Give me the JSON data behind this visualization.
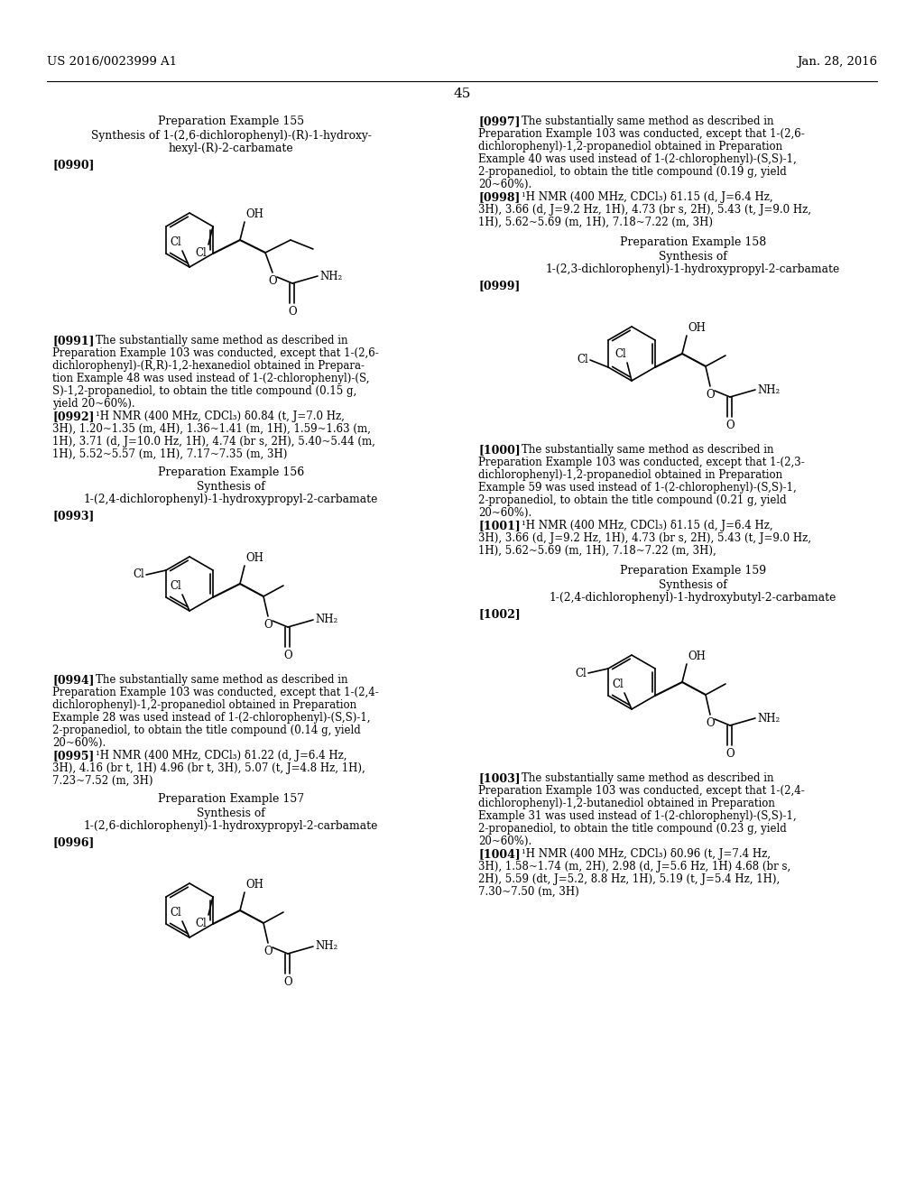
{
  "bg_color": "#ffffff",
  "header_left": "US 2016/0023999 A1",
  "header_right": "Jan. 28, 2016",
  "page_number": "45"
}
